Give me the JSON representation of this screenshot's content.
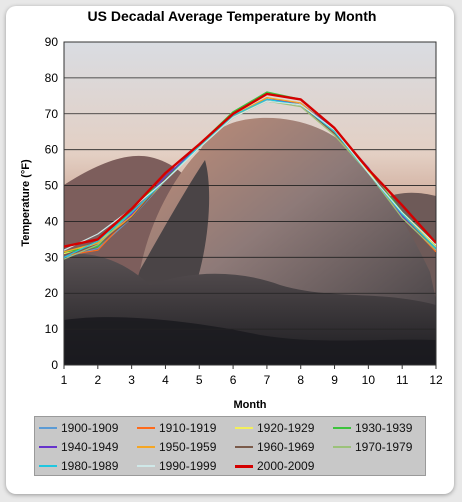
{
  "chart_data": {
    "type": "line",
    "title": "US Decadal Average Temperature by Month",
    "xlabel": "Month",
    "ylabel": "Temperature (°F)",
    "x": [
      1,
      2,
      3,
      4,
      5,
      6,
      7,
      8,
      9,
      10,
      11,
      12
    ],
    "xlim": [
      1,
      12
    ],
    "ylim": [
      0,
      90
    ],
    "y_ticks": [
      0,
      10,
      20,
      30,
      40,
      50,
      60,
      70,
      80,
      90
    ],
    "grid": true,
    "legend_position": "bottom",
    "background_image": "half-dome-photo",
    "series": [
      {
        "name": "1900-1909",
        "color": "#5b9bd5",
        "width": 1.2,
        "values": [
          30.0,
          32.5,
          41.0,
          51.5,
          60.5,
          69.0,
          74.0,
          72.5,
          64.5,
          53.5,
          41.5,
          32.0
        ]
      },
      {
        "name": "1910-1919",
        "color": "#ff6a1a",
        "width": 1.2,
        "values": [
          30.5,
          32.0,
          42.0,
          52.0,
          60.5,
          69.0,
          74.5,
          72.5,
          64.5,
          53.5,
          41.5,
          31.5
        ]
      },
      {
        "name": "1920-1929",
        "color": "#f3ef5a",
        "width": 1.2,
        "values": [
          31.0,
          34.0,
          42.5,
          51.5,
          60.5,
          69.0,
          74.0,
          72.5,
          65.5,
          54.0,
          42.0,
          33.0
        ]
      },
      {
        "name": "1930-1939",
        "color": "#3cc33c",
        "width": 1.6,
        "values": [
          31.5,
          33.0,
          43.5,
          52.0,
          61.5,
          70.5,
          76.0,
          74.0,
          65.5,
          54.5,
          42.5,
          33.5
        ]
      },
      {
        "name": "1940-1949",
        "color": "#6633cc",
        "width": 1.2,
        "values": [
          30.5,
          33.5,
          42.0,
          52.5,
          61.0,
          69.5,
          74.0,
          73.0,
          65.5,
          55.0,
          41.5,
          32.5
        ]
      },
      {
        "name": "1950-1959",
        "color": "#f5a623",
        "width": 1.2,
        "values": [
          31.5,
          34.0,
          41.5,
          51.5,
          61.0,
          69.5,
          74.5,
          73.0,
          65.0,
          54.5,
          42.0,
          33.5
        ]
      },
      {
        "name": "1960-1969",
        "color": "#7a5a4a",
        "width": 1.2,
        "values": [
          30.5,
          33.5,
          41.0,
          52.0,
          60.5,
          69.0,
          73.5,
          72.5,
          64.5,
          54.5,
          42.0,
          32.0
        ]
      },
      {
        "name": "1970-1979",
        "color": "#9cc27a",
        "width": 1.2,
        "values": [
          29.5,
          33.5,
          42.5,
          51.5,
          61.0,
          69.0,
          73.5,
          72.0,
          64.0,
          53.5,
          41.0,
          32.0
        ]
      },
      {
        "name": "1980-1989",
        "color": "#1fc7e0",
        "width": 1.2,
        "values": [
          30.0,
          34.5,
          42.5,
          51.5,
          61.0,
          69.5,
          74.0,
          72.5,
          65.0,
          53.5,
          42.0,
          32.5
        ]
      },
      {
        "name": "1990-1999",
        "color": "#cfe8e8",
        "width": 1.2,
        "values": [
          32.0,
          36.5,
          43.5,
          51.5,
          60.5,
          69.0,
          73.5,
          72.5,
          65.5,
          53.5,
          42.5,
          33.5
        ]
      },
      {
        "name": "2000-2009",
        "color": "#d40000",
        "width": 2.4,
        "values": [
          33.0,
          35.0,
          43.5,
          53.5,
          61.5,
          70.0,
          75.5,
          74.0,
          66.0,
          54.5,
          44.5,
          34.0
        ]
      }
    ]
  }
}
